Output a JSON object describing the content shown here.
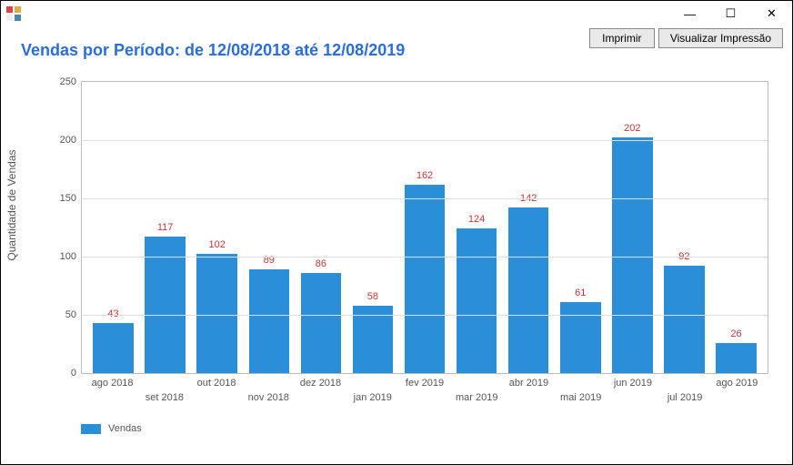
{
  "window": {
    "minimize": "—",
    "maximize": "☐",
    "close": "✕"
  },
  "toolbar": {
    "print_label": "Imprimir",
    "preview_label": "Visualizar Impressão"
  },
  "title": "Vendas por Período: de 12/08/2018 até 12/08/2019",
  "chart": {
    "type": "bar",
    "y_axis_label": "Quantidade de Vendas",
    "ylim": [
      0,
      250
    ],
    "ytick_step": 50,
    "yticks": [
      0,
      50,
      100,
      150,
      200,
      250
    ],
    "categories": [
      "ago 2018",
      "set 2018",
      "out 2018",
      "nov 2018",
      "dez 2018",
      "jan 2019",
      "fev 2019",
      "mar 2019",
      "abr 2019",
      "mai 2019",
      "jun 2019",
      "jul 2019",
      "ago 2019"
    ],
    "values": [
      43,
      117,
      102,
      89,
      86,
      58,
      162,
      124,
      142,
      61,
      202,
      92,
      26
    ],
    "bar_color": "#2a8fd8",
    "value_label_color": "#cc3333",
    "value_label_fontsize": 11,
    "grid_color": "#dddddd",
    "border_color": "#bbbbbb",
    "background_color": "#ffffff",
    "axis_fontsize": 11,
    "title_color": "#2a6edc",
    "title_fontsize": 18,
    "x_label_stagger": true,
    "legend": {
      "label": "Vendas",
      "swatch_color": "#2a8fd8"
    }
  }
}
